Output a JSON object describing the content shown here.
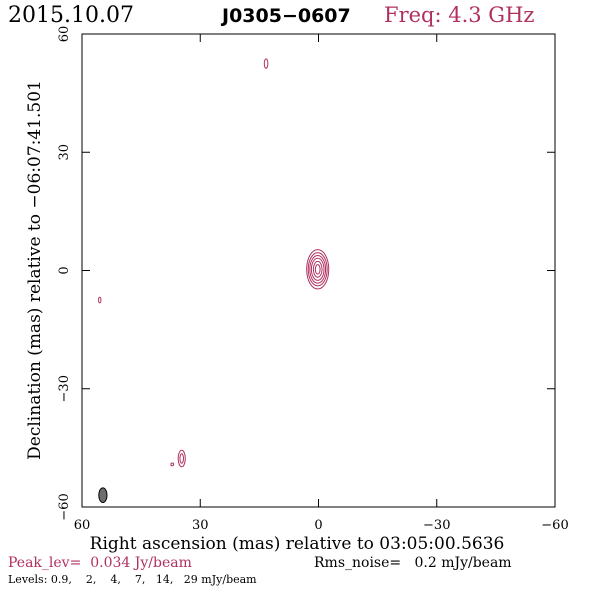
{
  "header": {
    "date": "2015.10.07",
    "source": "J0305−0607",
    "freq_label": "Freq: 4.3 GHz"
  },
  "chart_data": {
    "type": "contour",
    "xlabel": "Right ascension (mas) relative to 03:05:00.5636",
    "ylabel": "Declination (mas) relative to −06:07:41.501",
    "xlim": [
      60,
      -60
    ],
    "ylim": [
      -60,
      60
    ],
    "xticks": [
      60,
      30,
      0,
      -30,
      -60
    ],
    "yticks": [
      60,
      30,
      0,
      -30,
      -60
    ],
    "xtick_labels": [
      "60",
      "30",
      "0",
      "−30",
      "−60"
    ],
    "ytick_labels": [
      "60",
      "30",
      "0",
      "−30",
      "−60"
    ],
    "contour_color": "#b03060",
    "beam_color": "#6e6e6e",
    "components": [
      {
        "x": 0.2,
        "y": 0.3,
        "rx": [
          0.6,
          1.1,
          1.6,
          2.0,
          2.4,
          2.8
        ],
        "ry": [
          1.2,
          2.0,
          2.8,
          3.5,
          4.2,
          5.0
        ]
      },
      {
        "x": 13.3,
        "y": 52.5,
        "rx": [
          0.45
        ],
        "ry": [
          1.2
        ]
      },
      {
        "x": 34.7,
        "y": -47.7,
        "rx": [
          0.45,
          0.9
        ],
        "ry": [
          1.2,
          2.1
        ]
      },
      {
        "x": 37.1,
        "y": -49.2,
        "rx": [
          0.35
        ],
        "ry": [
          0.35
        ]
      },
      {
        "x": 55.5,
        "y": -7.5,
        "rx": [
          0.3
        ],
        "ry": [
          0.7
        ]
      }
    ],
    "beam": {
      "x": 54.7,
      "y": -57.0,
      "rx": 1.05,
      "ry": 1.85
    }
  },
  "footer": {
    "peak": "Peak_lev=  0.034 Jy/beam",
    "rms": "Rms_noise=   0.2 mJy/beam",
    "levels": "Levels: 0.9,    2,    4,    7,   14,   29 mJy/beam"
  }
}
